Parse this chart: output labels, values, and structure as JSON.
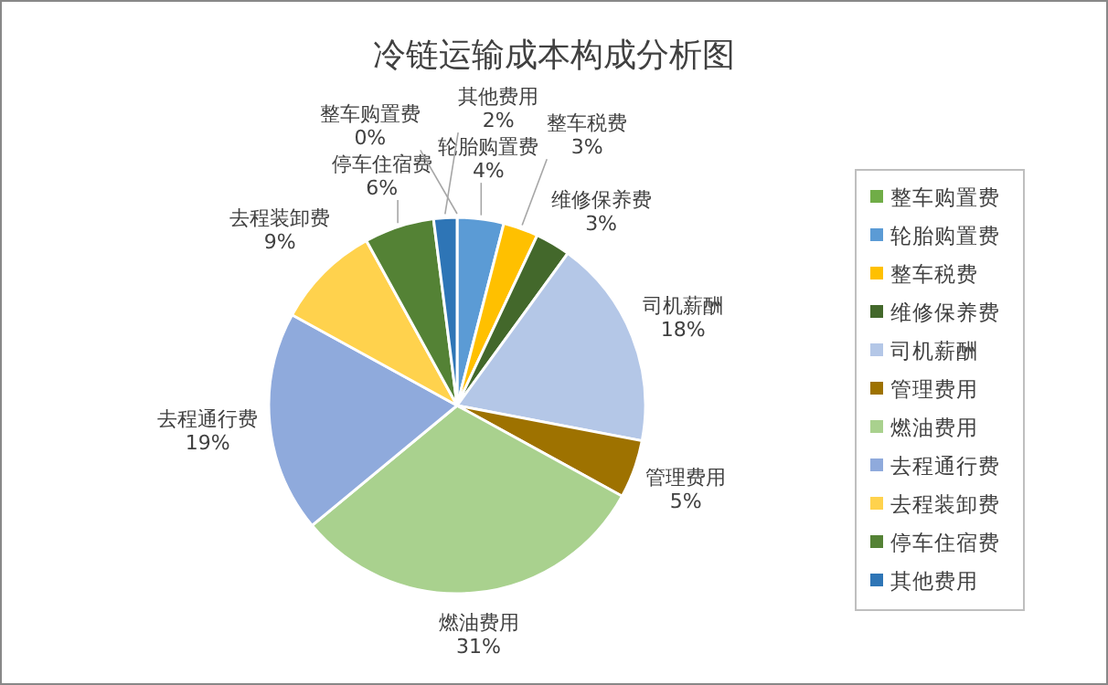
{
  "chart_data": {
    "type": "pie",
    "title": "冷链运输成本构成分析图",
    "categories": [
      "整车购置费",
      "轮胎购置费",
      "整车税费",
      "维修保养费",
      "司机薪酬",
      "管理费用",
      "燃油费用",
      "去程通行费",
      "去程装卸费",
      "停车住宿费",
      "其他费用"
    ],
    "values": [
      0,
      4,
      3,
      3,
      18,
      5,
      31,
      19,
      9,
      6,
      2
    ],
    "colors": [
      "#70ad47",
      "#5b9bd5",
      "#ffc000",
      "#43682b",
      "#b4c7e7",
      "#9e7200",
      "#a9d18e",
      "#8faadc",
      "#ffd24d",
      "#548235",
      "#2e75b6"
    ],
    "value_labels": [
      "0%",
      "4%",
      "3%",
      "3%",
      "18%",
      "5%",
      "31%",
      "19%",
      "9%",
      "6%",
      "2%"
    ],
    "data_labels": true,
    "legend": "right"
  }
}
